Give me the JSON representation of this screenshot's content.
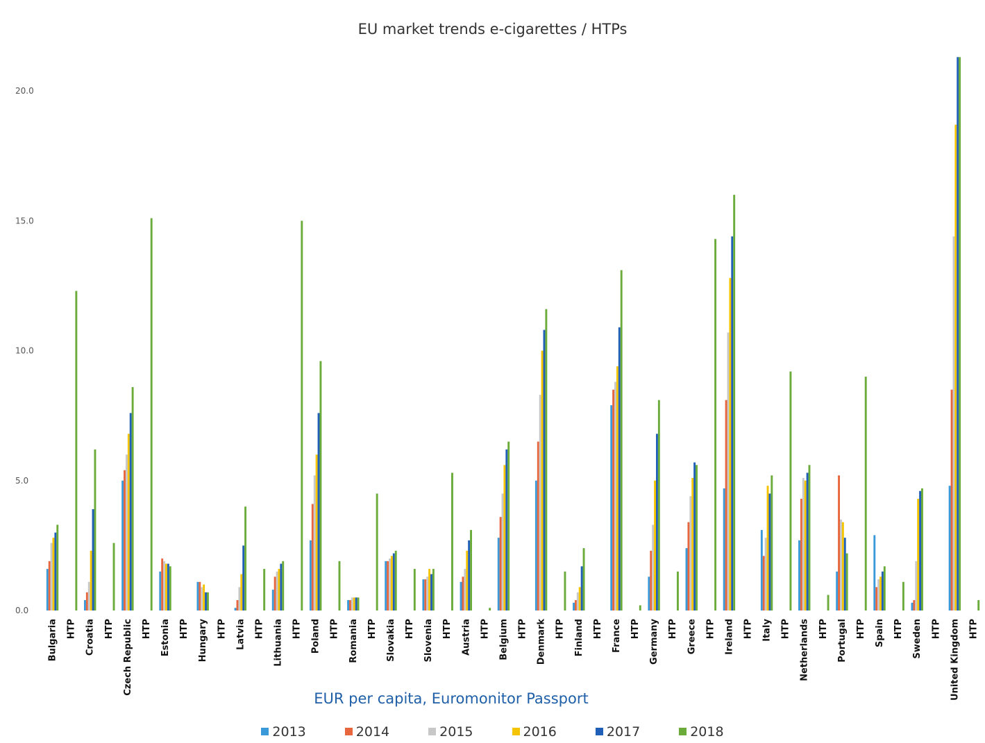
{
  "chart_data": {
    "type": "bar",
    "title": "EU market trends e-cigarettes / HTPs",
    "xlabel": "EUR per capita, Euromonitor Passport",
    "ylabel": "",
    "ylim": [
      0,
      21.5
    ],
    "yticks": [
      "0.0",
      "5.0",
      "10.0",
      "15.0",
      "20.0"
    ],
    "grid": false,
    "legend_position": "bottom",
    "categories": [
      "Bulgaria",
      "HTP",
      "Croatia",
      "HTP",
      "Czech Republic",
      "HTP",
      "Estonia",
      "HTP",
      "Hungary",
      "HTP",
      "Latvia",
      "HTP",
      "Lithuania",
      "HTP",
      "Poland",
      "HTP",
      "Romania",
      "HTP",
      "Slovakia",
      "HTP",
      "Slovenia",
      "HTP",
      "Austria",
      "HTP",
      "Belgium",
      "HTP",
      "Denmark",
      "HTP",
      "Finland",
      "HTP",
      "France",
      "HTP",
      "Germany",
      "HTP",
      "Greece",
      "HTP",
      "Ireland",
      "HTP",
      "Italy",
      "HTP",
      "Netherlands",
      "HTP",
      "Portugal",
      "HTP",
      "Spain",
      "HTP",
      "Sweden",
      "HTP",
      "United Kingdom",
      "HTP"
    ],
    "series": [
      {
        "name": "2013",
        "color": "#3a9ad9",
        "values": [
          1.6,
          0,
          0.4,
          0,
          5.0,
          0,
          1.5,
          0,
          1.1,
          0,
          0.1,
          0,
          0.8,
          0,
          2.7,
          0,
          0.4,
          0,
          1.9,
          0,
          1.2,
          0,
          1.1,
          0,
          2.8,
          0,
          5.0,
          0,
          0.3,
          0,
          7.9,
          0,
          1.3,
          0,
          2.4,
          0,
          4.7,
          0,
          3.1,
          0,
          2.7,
          0,
          1.5,
          0,
          2.9,
          0,
          0.3,
          0,
          4.8,
          0
        ]
      },
      {
        "name": "2014",
        "color": "#e8663d",
        "values": [
          1.9,
          0,
          0.7,
          0,
          5.4,
          0,
          2.0,
          0,
          1.1,
          0,
          0.4,
          0,
          1.3,
          0,
          4.1,
          0,
          0.4,
          0,
          1.9,
          0,
          1.2,
          0,
          1.3,
          0,
          3.6,
          0,
          6.5,
          0,
          0.4,
          0,
          8.5,
          0,
          2.3,
          0,
          3.4,
          0,
          8.1,
          0,
          2.1,
          0,
          4.3,
          0,
          5.2,
          0,
          0.9,
          0,
          0.4,
          0,
          8.5,
          0
        ]
      },
      {
        "name": "2015",
        "color": "#c8c8c8",
        "values": [
          2.6,
          0,
          1.1,
          0,
          6.0,
          0,
          1.9,
          0,
          0.9,
          0,
          0.9,
          0,
          1.5,
          0,
          5.2,
          0,
          0.5,
          0,
          2.0,
          0,
          1.3,
          0,
          1.6,
          0,
          4.5,
          0,
          8.3,
          0,
          0.7,
          0,
          8.8,
          0,
          3.3,
          0,
          4.4,
          0,
          10.7,
          0,
          2.8,
          0,
          5.1,
          0,
          3.5,
          0,
          1.2,
          0,
          1.9,
          0,
          14.4,
          0
        ]
      },
      {
        "name": "2016",
        "color": "#f5c400",
        "values": [
          2.8,
          0,
          2.3,
          0,
          6.8,
          0,
          1.8,
          0,
          1.0,
          0,
          1.4,
          0,
          1.6,
          0,
          6.0,
          0,
          0.5,
          0,
          2.1,
          0,
          1.6,
          0,
          2.3,
          0,
          5.6,
          0,
          10.0,
          0,
          0.9,
          0,
          9.4,
          0,
          5.0,
          0,
          5.1,
          0,
          12.8,
          0,
          4.8,
          0,
          5.0,
          0,
          3.4,
          0,
          1.3,
          0,
          4.3,
          0,
          18.7,
          0
        ]
      },
      {
        "name": "2017",
        "color": "#1f5fb8",
        "values": [
          3.0,
          0,
          3.9,
          0,
          7.6,
          0,
          1.8,
          0,
          0.7,
          0,
          2.5,
          0,
          1.8,
          0,
          7.6,
          0,
          0.5,
          0,
          2.2,
          0,
          1.4,
          0,
          2.7,
          0,
          6.2,
          0,
          10.8,
          0,
          1.7,
          0,
          10.9,
          0,
          6.8,
          0,
          5.7,
          0,
          14.4,
          0,
          4.5,
          0,
          5.3,
          0,
          2.8,
          0,
          1.5,
          0,
          4.6,
          0,
          21.3,
          0
        ]
      },
      {
        "name": "2018",
        "color": "#6aab3a",
        "values": [
          3.3,
          12.3,
          6.2,
          2.6,
          8.6,
          15.1,
          1.7,
          0,
          0.7,
          0,
          4.0,
          1.6,
          1.9,
          15.0,
          9.6,
          1.9,
          0.5,
          4.5,
          2.3,
          1.6,
          1.6,
          5.3,
          3.1,
          0.1,
          6.5,
          0,
          11.6,
          1.5,
          2.4,
          0,
          13.1,
          0.2,
          8.1,
          1.5,
          5.6,
          14.3,
          16.0,
          0,
          5.2,
          9.2,
          5.6,
          0.6,
          2.2,
          9.0,
          1.7,
          1.1,
          4.7,
          0,
          21.3,
          0.4
        ]
      }
    ]
  }
}
